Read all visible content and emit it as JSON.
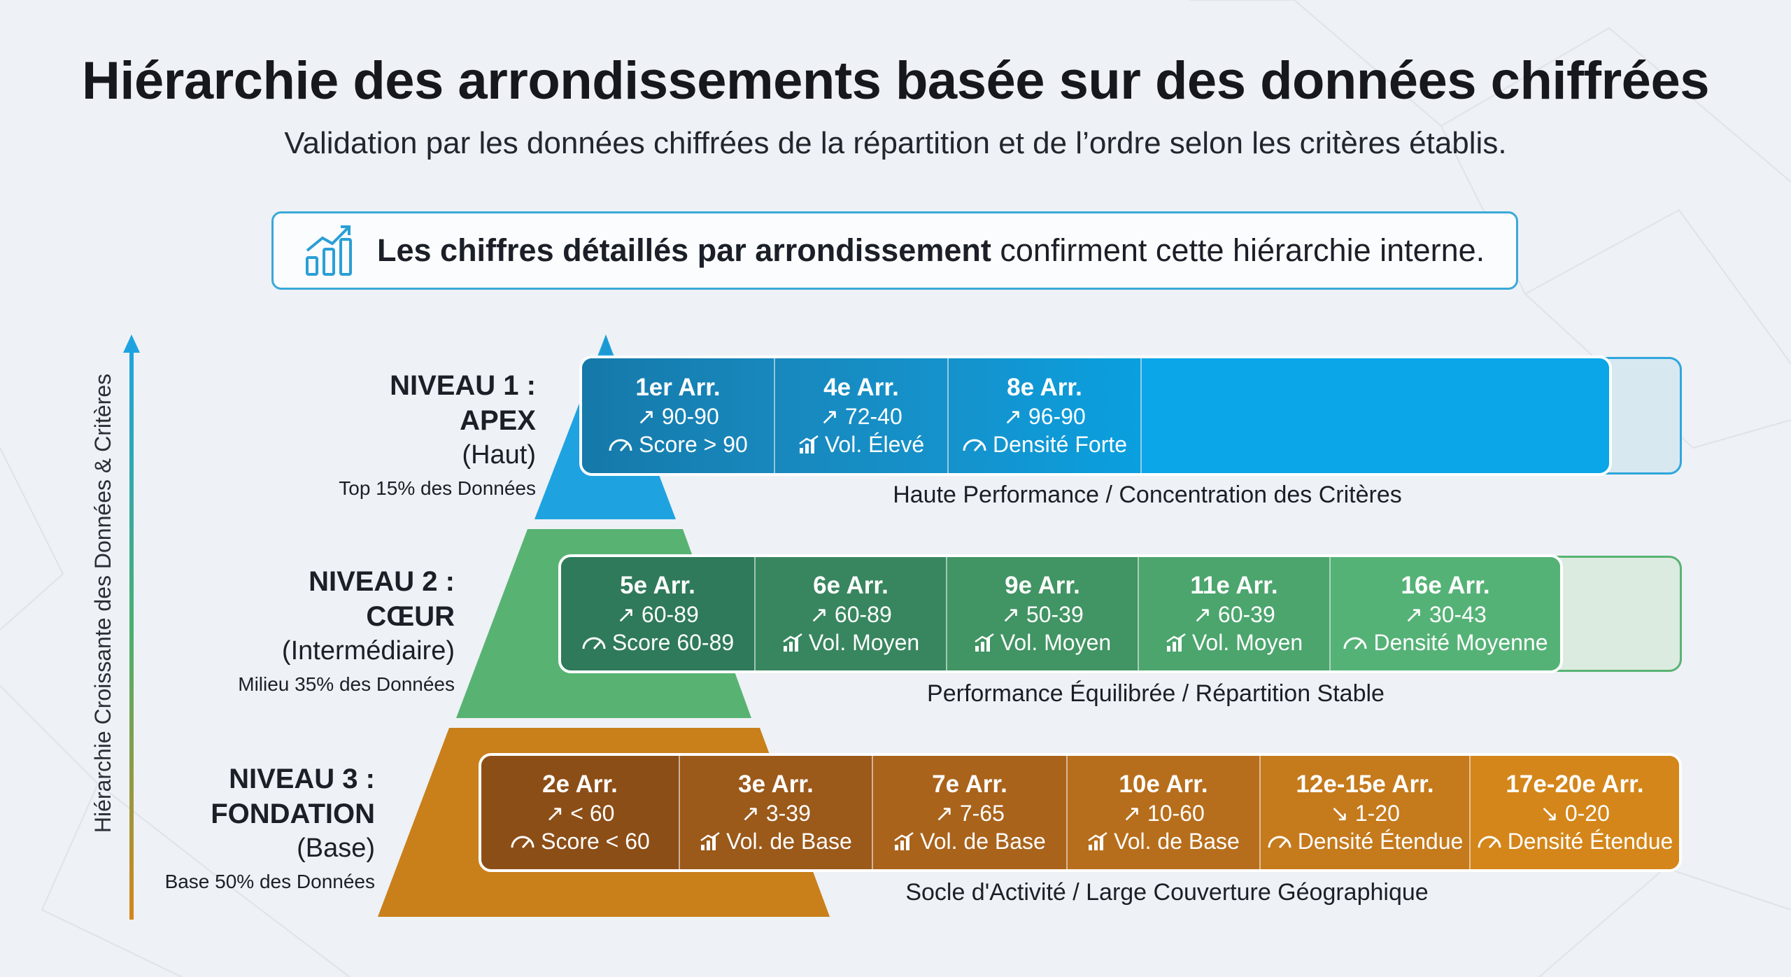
{
  "header": {
    "title": "Hiérarchie des arrondissements basée sur des données chiffrées",
    "subtitle": "Validation par les données chiffrées de la répartition et de l’ordre selon les critères établis."
  },
  "callout": {
    "icon": "bar-chart-trend-icon",
    "bold_text": "Les chiffres détaillés par arrondissement",
    "rest_text": " confirment cette hiérarchie interne."
  },
  "axis": {
    "label": "Hiérarchie Croissante des Données & Critères"
  },
  "colors": {
    "apex": "#0aa6e8",
    "apex_dark": "#1579a9",
    "coeur": "#5cb87a",
    "coeur_dark": "#2e7a5a",
    "fondation": "#d4861a",
    "fondation_dark": "#8c4e17"
  },
  "levels": [
    {
      "title_line1": "NIVEAU 1 :",
      "title_line2": "APEX",
      "qualifier": "(Haut)",
      "share": "Top 15% des Données",
      "caption": "Haute Performance / Concentration des Critères",
      "cells": [
        {
          "name": "1er Arr.",
          "range": "90-90",
          "trend": "up",
          "metric_icon": "gauge-icon",
          "metric": "Score > 90"
        },
        {
          "name": "4e Arr.",
          "range": "72-40",
          "trend": "up",
          "metric_icon": "signal-bars-icon",
          "metric": "Vol. Élevé"
        },
        {
          "name": "8e Arr.",
          "range": "96-90",
          "trend": "up",
          "metric_icon": "gauge-icon",
          "metric": "Densité Forte"
        }
      ]
    },
    {
      "title_line1": "NIVEAU 2 :",
      "title_line2": "CŒUR",
      "qualifier": "(Intermédiaire)",
      "share": "Milieu 35% des Données",
      "caption": "Performance Équilibrée / Répartition Stable",
      "cells": [
        {
          "name": "5e Arr.",
          "range": "60-89",
          "trend": "up",
          "metric_icon": "gauge-icon",
          "metric": "Score 60-89"
        },
        {
          "name": "6e Arr.",
          "range": "60-89",
          "trend": "up",
          "metric_icon": "signal-bars-icon",
          "metric": "Vol. Moyen"
        },
        {
          "name": "9e Arr.",
          "range": "50-39",
          "trend": "up",
          "metric_icon": "signal-bars-icon",
          "metric": "Vol. Moyen"
        },
        {
          "name": "11e Arr.",
          "range": "60-39",
          "trend": "up",
          "metric_icon": "signal-bars-icon",
          "metric": "Vol. Moyen"
        },
        {
          "name": "16e Arr.",
          "range": "30-43",
          "trend": "up",
          "metric_icon": "gauge-icon",
          "metric": "Densité Moyenne"
        }
      ]
    },
    {
      "title_line1": "NIVEAU 3 :",
      "title_line2": "FONDATION",
      "qualifier": "(Base)",
      "share": "Base 50% des Données",
      "caption": "Socle d'Activité / Large Couverture Géographique",
      "cells": [
        {
          "name": "2e Arr.",
          "range": "< 60",
          "trend": "up",
          "metric_icon": "gauge-icon",
          "metric": "Score < 60"
        },
        {
          "name": "3e Arr.",
          "range": "3-39",
          "trend": "up",
          "metric_icon": "signal-bars-icon",
          "metric": "Vol. de Base"
        },
        {
          "name": "7e Arr.",
          "range": "7-65",
          "trend": "up",
          "metric_icon": "signal-bars-icon",
          "metric": "Vol. de Base"
        },
        {
          "name": "10e Arr.",
          "range": "10-60",
          "trend": "up",
          "metric_icon": "signal-bars-icon",
          "metric": "Vol. de Base"
        },
        {
          "name": "12e-15e Arr.",
          "range": "1-20",
          "trend": "down",
          "metric_icon": "gauge-icon",
          "metric": "Densité Étendue"
        },
        {
          "name": "17e-20e Arr.",
          "range": "0-20",
          "trend": "down",
          "metric_icon": "gauge-icon",
          "metric": "Densité Étendue"
        }
      ]
    }
  ]
}
